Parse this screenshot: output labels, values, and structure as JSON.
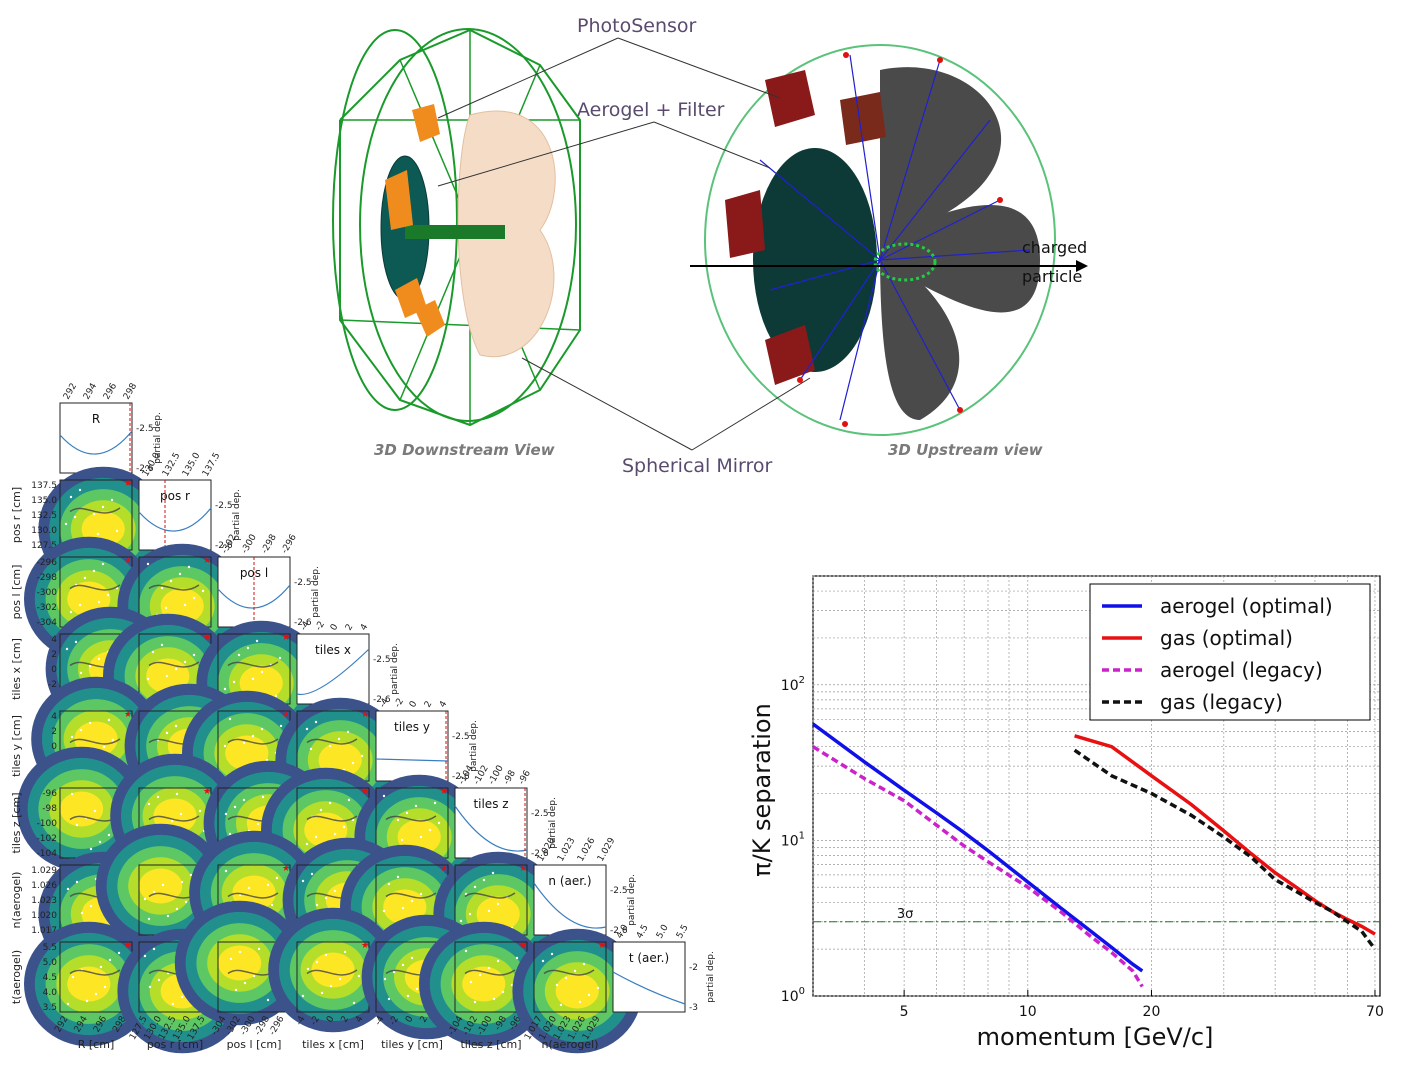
{
  "detector": {
    "labels": {
      "photosensor": "PhotoSensor",
      "aerogel_filter": "Aerogel + Filter",
      "spherical_mirror": "Spherical Mirror",
      "charged_particle_1": "charged",
      "charged_particle_2": "particle",
      "downstream_view": "3D Downstream View",
      "upstream_view": "3D Upstream view"
    }
  },
  "corner_plot": {
    "axis_short_y": [
      "R",
      "pos r [cm]",
      "pos l [cm]",
      "tiles x [cm]",
      "tiles y [cm]",
      "tiles z [cm]",
      "n(aerogel)",
      "t(aerogel)"
    ],
    "axis_short_x": [
      "R [cm]",
      "pos r [cm]",
      "pos l [cm]",
      "tiles x [cm]",
      "tiles y [cm]",
      "tiles z [cm]",
      "n(aerogel)"
    ],
    "diag_titles": [
      "R",
      "pos r",
      "pos l",
      "tiles x",
      "tiles y",
      "tiles z",
      "n (aer.)",
      "t (aer.)"
    ],
    "partial_dep_label": "partial dep.",
    "y_ticks": [
      [],
      [
        "137.5",
        "135.0",
        "132.5",
        "130.0",
        "127.5"
      ],
      [
        "-296",
        "-298",
        "-300",
        "-302",
        "-304"
      ],
      [
        "4",
        "2",
        "0",
        "-2",
        "-4"
      ],
      [
        "4",
        "2",
        "0",
        "-2",
        "-4"
      ],
      [
        "-96",
        "-98",
        "-100",
        "-102",
        "-104"
      ],
      [
        "1.029",
        "1.026",
        "1.023",
        "1.020",
        "1.017"
      ],
      [
        "5.5",
        "5.0",
        "4.5",
        "4.0",
        "3.5"
      ]
    ],
    "x_ticks": [
      [
        "292",
        "294",
        "296",
        "298"
      ],
      [
        "127.5",
        "130.0",
        "132.5",
        "135.0",
        "137.5"
      ],
      [
        "-304",
        "-302",
        "-300",
        "-298",
        "-296"
      ],
      [
        "-4",
        "-2",
        "0",
        "2",
        "4"
      ],
      [
        "-4",
        "-2",
        "0",
        "2",
        "4"
      ],
      [
        "-104",
        "-102",
        "-100",
        "-98",
        "-96"
      ],
      [
        "1.017",
        "1.020",
        "1.023",
        "1.026",
        "1.029"
      ]
    ],
    "top_ticks": [
      [
        "292",
        "294",
        "296",
        "298"
      ],
      [
        "130.0",
        "132.5",
        "135.0",
        "137.5"
      ],
      [
        "-302",
        "-300",
        "-298",
        "-296"
      ],
      [
        "-4",
        "-2",
        "0",
        "2",
        "4"
      ],
      [
        "-4",
        "-2",
        "0",
        "2",
        "4"
      ],
      [
        "-104",
        "-102",
        "-100",
        "-98",
        "-96"
      ],
      [
        "1.020",
        "1.023",
        "1.026",
        "1.029"
      ],
      [
        "4.0",
        "4.5",
        "5.0",
        "5.5"
      ]
    ],
    "diag_right_ticks": [
      [
        "-2.5",
        "-2.6"
      ],
      [
        "-2.5",
        "-2.6"
      ],
      [
        "-2.5",
        "-2.6"
      ],
      [
        "-2.5",
        "-2.6"
      ],
      [
        "-2.5",
        "-2.6"
      ],
      [
        "-2.5",
        "-2.6"
      ],
      [
        "-2.5",
        "-2.6"
      ],
      [
        "-2",
        "-3"
      ]
    ]
  },
  "chart_data": {
    "type": "line",
    "xlabel": "momentum [GeV/c]",
    "ylabel": "π/K separation",
    "xscale": "log",
    "yscale": "log",
    "xlim": [
      3,
      72
    ],
    "ylim": [
      1,
      500
    ],
    "x_ticks": [
      "5",
      "10",
      "20",
      "70"
    ],
    "y_ticks": [
      "10^0",
      "10^1",
      "10^2"
    ],
    "grid": true,
    "legend_position": "top-right",
    "threshold": {
      "value": 3,
      "label": "3σ",
      "color": "#1a7a1a"
    },
    "series": [
      {
        "name": "aerogel (optimal)",
        "color": "#1010e8",
        "dash": "solid",
        "x": [
          3,
          4,
          5,
          6,
          7,
          8,
          10,
          12,
          14,
          16,
          18,
          19
        ],
        "y": [
          56,
          32,
          21,
          15,
          11.2,
          8.6,
          5.4,
          3.7,
          2.7,
          2.05,
          1.6,
          1.45
        ]
      },
      {
        "name": "gas (optimal)",
        "color": "#e81010",
        "dash": "solid",
        "x": [
          13,
          16,
          20,
          25,
          30,
          35,
          40,
          45,
          50,
          55,
          60,
          65,
          70
        ],
        "y": [
          47,
          40,
          26,
          17,
          11.5,
          8.2,
          6.2,
          5.0,
          4.1,
          3.5,
          3.1,
          2.8,
          2.5
        ]
      },
      {
        "name": "aerogel (legacy)",
        "color": "#cc22cc",
        "dash": "dashed",
        "x": [
          3,
          4,
          5,
          6,
          7,
          8,
          10,
          12,
          14,
          16,
          18,
          19
        ],
        "y": [
          40,
          25,
          18,
          12.5,
          9.2,
          7.3,
          5.0,
          3.5,
          2.5,
          1.9,
          1.45,
          1.15
        ]
      },
      {
        "name": "gas (legacy)",
        "color": "#111111",
        "dash": "dashed",
        "x": [
          13,
          16,
          20,
          25,
          30,
          35,
          40,
          45,
          50,
          55,
          60,
          65,
          70
        ],
        "y": [
          38,
          26,
          20,
          14.5,
          10.5,
          7.8,
          5.6,
          4.7,
          4.0,
          3.5,
          3.0,
          2.6,
          2.0
        ]
      }
    ]
  }
}
